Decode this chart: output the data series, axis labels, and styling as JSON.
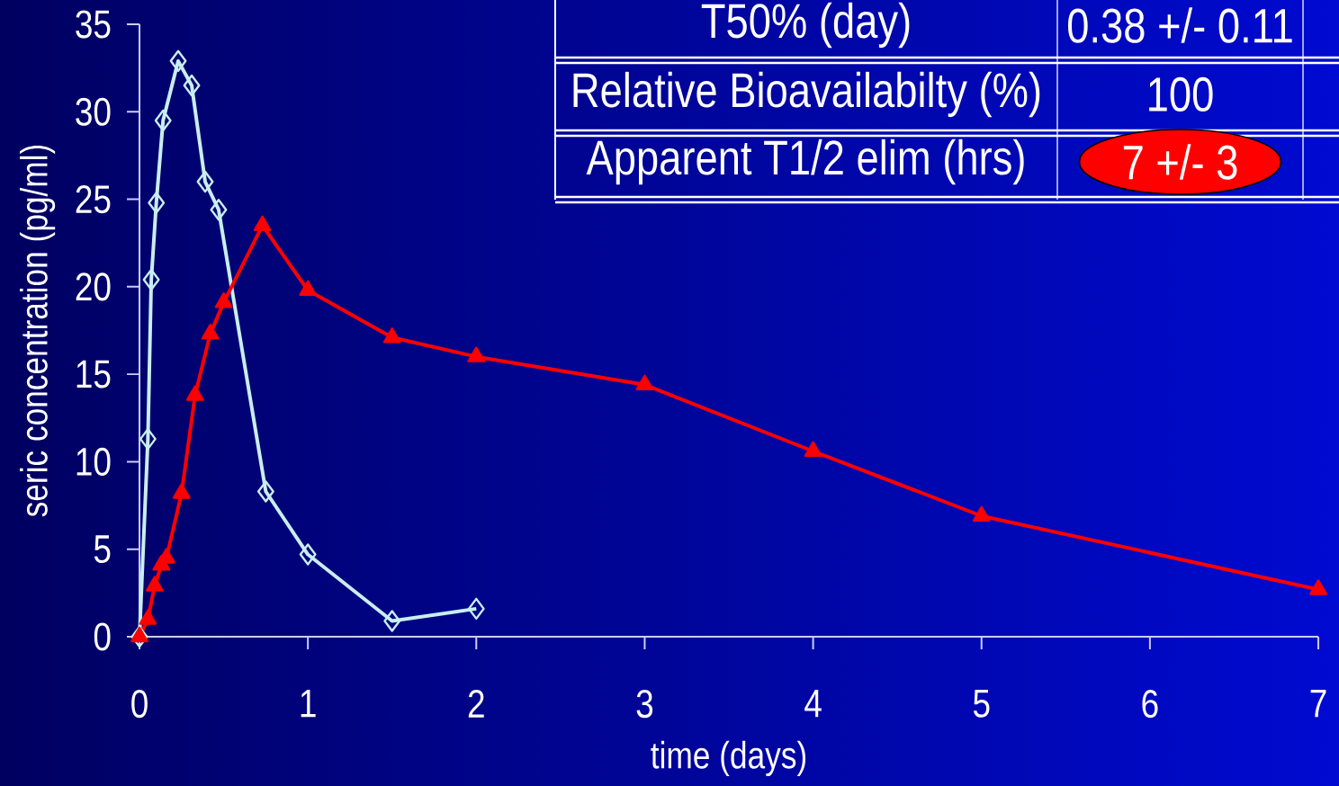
{
  "chart_data": {
    "type": "line",
    "xlabel": "time (days)",
    "ylabel": "seric concentration (pg/ml)",
    "xlim": [
      0,
      7
    ],
    "ylim": [
      0,
      35
    ],
    "xticks": [
      0,
      1,
      2,
      3,
      4,
      5,
      6,
      7
    ],
    "yticks": [
      0,
      5,
      10,
      15,
      20,
      25,
      30,
      35
    ],
    "grid": false,
    "line_style": "solid",
    "series": [
      {
        "color": "#c8eef0",
        "marker": "diamond",
        "x": [
          0,
          0.05,
          0.07,
          0.1,
          0.14,
          0.23,
          0.31,
          0.39,
          0.47,
          0.75,
          1,
          1.5,
          2
        ],
        "values": [
          0,
          11.3,
          20.4,
          24.8,
          29.5,
          32.9,
          31.5,
          26.0,
          24.4,
          8.3,
          4.7,
          0.9,
          1.6
        ]
      },
      {
        "color": "#ff0000",
        "marker": "triangle",
        "x": [
          0,
          0.05,
          0.09,
          0.13,
          0.16,
          0.25,
          0.33,
          0.42,
          0.5,
          0.73,
          1,
          1.5,
          2,
          3,
          4,
          5,
          7
        ],
        "values": [
          0,
          1.0,
          2.9,
          4.1,
          4.5,
          8.2,
          13.8,
          17.3,
          19.1,
          23.5,
          19.8,
          17.1,
          16.0,
          14.4,
          10.6,
          6.9,
          2.7
        ]
      }
    ],
    "annotations": [
      "T50% (day)",
      "0.38 +/- 0.11",
      "Relative Bioavailabilty (%)",
      "100",
      "Apparent T1/2 elim (hrs)",
      "7 +/- 3"
    ]
  }
}
